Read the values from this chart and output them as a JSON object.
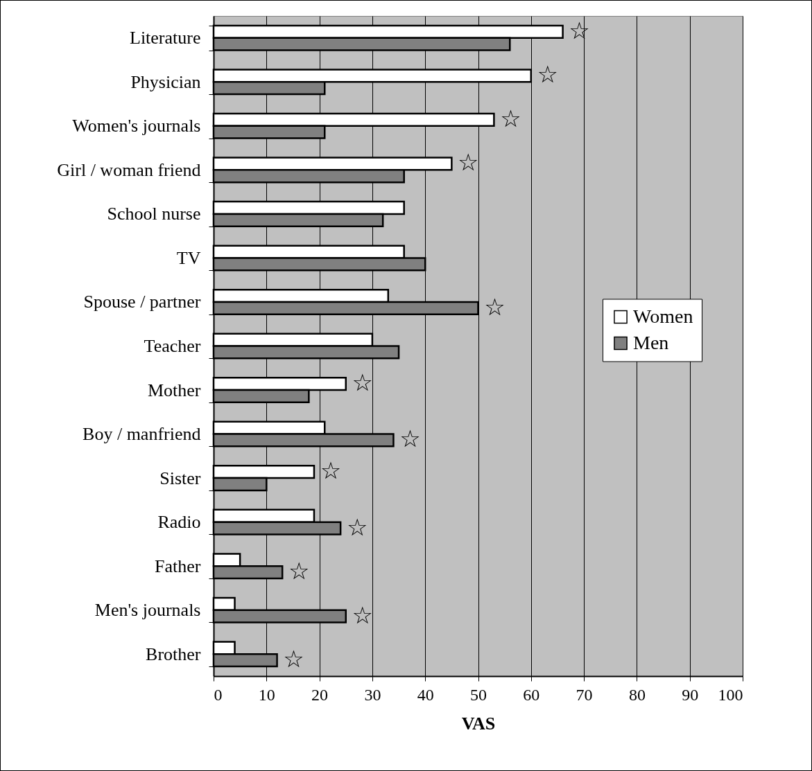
{
  "chart_data": {
    "type": "bar",
    "orientation": "horizontal",
    "xlabel": "VAS",
    "categories": [
      "Literature",
      "Physician",
      "Women's journals",
      "Girl / woman friend",
      "School nurse",
      "TV",
      "Spouse / partner",
      "Teacher",
      "Mother",
      "Boy / manfriend",
      "Sister",
      "Radio",
      "Father",
      "Men's journals",
      "Brother"
    ],
    "series": [
      {
        "name": "Women",
        "color": "#ffffff",
        "values": [
          66,
          60,
          53,
          45,
          36,
          36,
          33,
          30,
          25,
          21,
          19,
          19,
          5,
          4,
          4
        ]
      },
      {
        "name": "Men",
        "color": "#808080",
        "values": [
          56,
          21,
          21,
          36,
          32,
          40,
          50,
          35,
          18,
          34,
          10,
          24,
          13,
          25,
          12
        ]
      }
    ],
    "xlim": [
      0,
      100
    ],
    "xticks": [
      0,
      10,
      20,
      30,
      40,
      50,
      60,
      70,
      80,
      90,
      100
    ],
    "grid": "x",
    "legend": "right",
    "annotations": [
      {
        "text": "☆",
        "x": 66,
        "y": "Literature"
      },
      {
        "text": "☆",
        "x": 60,
        "y": "Physician"
      },
      {
        "text": "☆",
        "x": 53,
        "y": "Women's journals"
      },
      {
        "text": "☆",
        "x": 45,
        "y": "Girl / woman friend"
      },
      {
        "text": "☆",
        "x": 50,
        "y": "Spouse / partner"
      },
      {
        "text": "☆",
        "x": 25,
        "y": "Mother"
      },
      {
        "text": "☆",
        "x": 34,
        "y": "Boy / manfriend"
      },
      {
        "text": "☆",
        "x": 19,
        "y": "Sister"
      },
      {
        "text": "☆",
        "x": 24,
        "y": "Radio"
      },
      {
        "text": "☆",
        "x": 13,
        "y": "Father"
      },
      {
        "text": "☆",
        "x": 25,
        "y": "Men's journals"
      },
      {
        "text": "☆",
        "x": 12,
        "y": "Brother"
      }
    ]
  }
}
